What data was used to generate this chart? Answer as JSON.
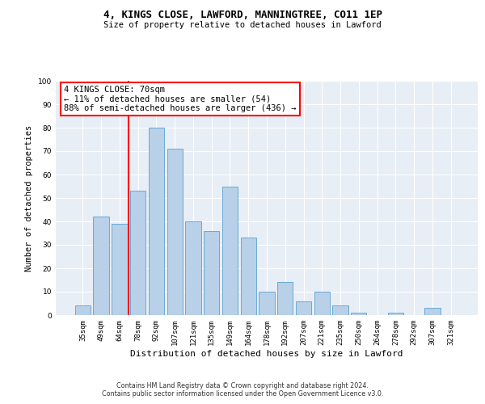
{
  "title1": "4, KINGS CLOSE, LAWFORD, MANNINGTREE, CO11 1EP",
  "title2": "Size of property relative to detached houses in Lawford",
  "xlabel": "Distribution of detached houses by size in Lawford",
  "ylabel": "Number of detached properties",
  "bar_labels": [
    "35sqm",
    "49sqm",
    "64sqm",
    "78sqm",
    "92sqm",
    "107sqm",
    "121sqm",
    "135sqm",
    "149sqm",
    "164sqm",
    "178sqm",
    "192sqm",
    "207sqm",
    "221sqm",
    "235sqm",
    "250sqm",
    "264sqm",
    "278sqm",
    "292sqm",
    "307sqm",
    "321sqm"
  ],
  "bar_values": [
    4,
    42,
    39,
    53,
    80,
    71,
    40,
    36,
    55,
    33,
    10,
    14,
    6,
    10,
    4,
    1,
    0,
    1,
    0,
    3,
    0
  ],
  "bar_color": "#b8d0e8",
  "bar_edge_color": "#6aaad4",
  "vline_index": 2.5,
  "vline_color": "red",
  "annotation_text": "4 KINGS CLOSE: 70sqm\n← 11% of detached houses are smaller (54)\n88% of semi-detached houses are larger (436) →",
  "annotation_box_color": "white",
  "annotation_box_edge_color": "red",
  "ylim": [
    0,
    100
  ],
  "yticks": [
    0,
    10,
    20,
    30,
    40,
    50,
    60,
    70,
    80,
    90,
    100
  ],
  "bg_color": "#e8eef5",
  "footer1": "Contains HM Land Registry data © Crown copyright and database right 2024.",
  "footer2": "Contains public sector information licensed under the Open Government Licence v3.0."
}
